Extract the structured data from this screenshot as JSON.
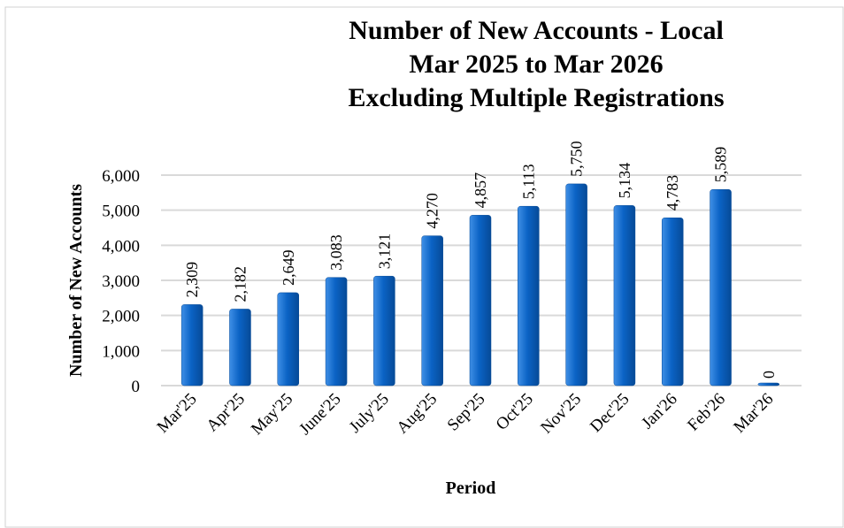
{
  "chart_data": {
    "type": "bar",
    "title": [
      "Number of New Accounts - Local",
      "Mar 2025 to Mar 2026",
      "Excluding Multiple Registrations"
    ],
    "x_label": "Period",
    "y_label": "Number of New Accounts",
    "categories": [
      "Mar'25",
      "Apr'25",
      "May'25",
      "June'25",
      "July'25",
      "Aug'25",
      "Sep'25",
      "Oct'25",
      "Nov'25",
      "Dec'25",
      "Jan'26",
      "Feb'26",
      "Mar'26"
    ],
    "values": [
      2309,
      2182,
      2649,
      3083,
      3121,
      4270,
      4857,
      5113,
      5750,
      5134,
      4783,
      5589,
      0
    ],
    "value_labels": [
      "2,309",
      "2,182",
      "2,649",
      "3,083",
      "3,121",
      "4,270",
      "4,857",
      "5,113",
      "5,750",
      "5,134",
      "4,783",
      "5,589",
      "0"
    ],
    "color": "#0b63c5",
    "ylim": [
      0,
      6000
    ],
    "yticks": [
      0,
      {
        "value": 1000,
        "label": "1,000"
      },
      {
        "value": 2000,
        "label": "2,000"
      },
      {
        "value": 3000,
        "label": "3,000"
      },
      {
        "value": 4000,
        "label": "4,000"
      },
      {
        "value": 5000,
        "label": "5,000"
      },
      {
        "value": 6000,
        "label": "6,000"
      }
    ],
    "grid": true
  }
}
